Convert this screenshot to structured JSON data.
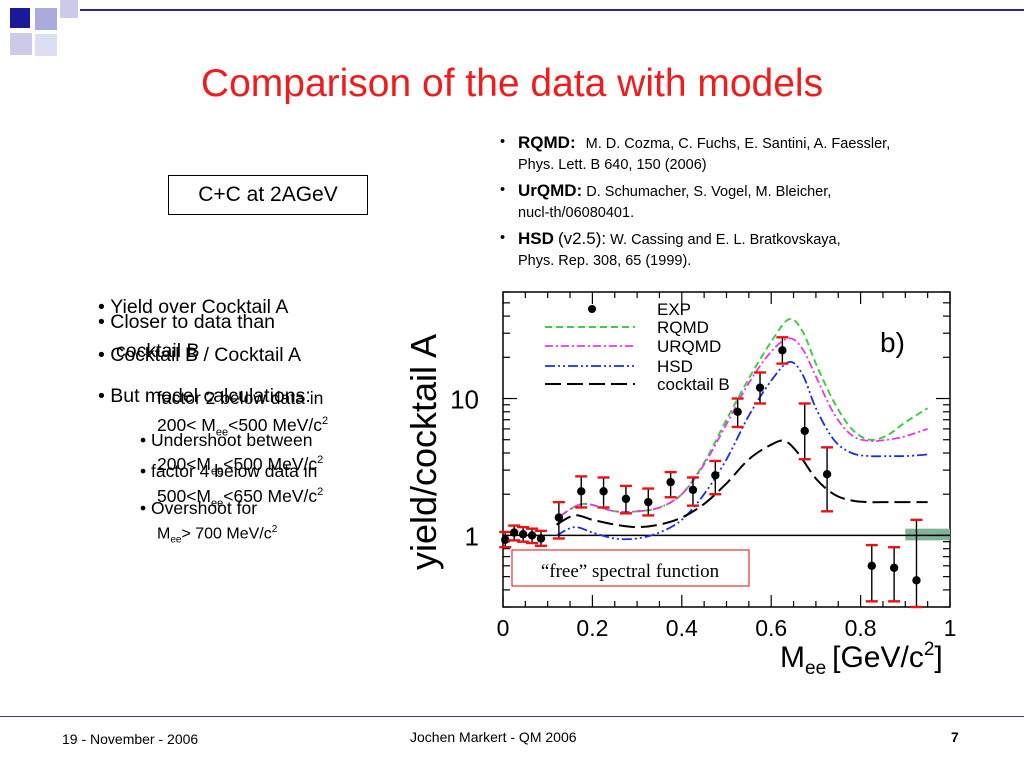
{
  "slide": {
    "title": "Comparison of the data with models",
    "box_label": "C+C at 2AGeV",
    "references": [
      {
        "name": "RQMD:",
        "version": "",
        "line1": "M. D. Cozma, C. Fuchs, E. Santini, A. Faessler,",
        "line2": "Phys. Lett. B 640, 150 (2006)"
      },
      {
        "name": "UrQMD:",
        "version": "",
        "line1": "D. Schumacher, S. Vogel, M. Bleicher,",
        "line2": "nucl-th/06080401."
      },
      {
        "name": "HSD",
        "version": "(v2.5):",
        "line1": "W. Cassing and E. L. Bratkovskaya,",
        "line2": "Phys. Rep. 308, 65 (1999)."
      }
    ],
    "bullets_a": {
      "b1": "Yield over Cocktail A",
      "b1_wrap": "cocktail B",
      "b2_l1": "Closer to data than",
      "b2_l2": "Cocktail B / Cocktail A",
      "b3": "But model calculations:",
      "b3_wrap": "factor 2 below data in",
      "s1": "200< M",
      "s1_sub": "ee",
      "s1_end": "<500 MeV/c",
      "s2_l1": "Undershoot between",
      "s2_l2": "200<M",
      "s2_l2_sub": "ee",
      "s2_l2_end": "<500 MeV/c",
      "s3_l1": "factor 4 below data in",
      "s3_l2": "500<M",
      "s3_l2_sub": "ee",
      "s3_l2_end": "<650 MeV/c",
      "s4_l1": "Overshoot for",
      "s4_l2": "M",
      "s4_l2_sub": "ee",
      "s4_l2_end": "> 700 MeV/c",
      "sup2": "2"
    },
    "footer": {
      "date": "19 - November - 2006",
      "center": "Jochen Markert - QM 2006",
      "page": "7"
    }
  },
  "chart_data": {
    "type": "scatter",
    "xlabel": "M",
    "xlabel_sub": "ee",
    "xlabel_unit": "[GeV/c",
    "xlabel_sup": "2",
    "xlabel_end": "]",
    "ylabel": "yield/cocktail A",
    "panel_label": "b)",
    "annotation": "“free” spectral function",
    "x_ticks": [
      "0",
      "0.2",
      "0.4",
      "0.6",
      "0.8",
      "1"
    ],
    "y_ticks": [
      "1",
      "10"
    ],
    "xlim": [
      0,
      1
    ],
    "ylim": [
      0.3,
      60
    ],
    "y_scale": "log",
    "legend": [
      "EXP",
      "RQMD",
      "URQMD",
      "HSD",
      "cocktail B"
    ],
    "colors": {
      "EXP": "#000000",
      "RQMD": "#44cc44",
      "URQMD": "#ee33ee",
      "HSD": "#1a2ee0",
      "cocktail B": "#000000",
      "errors": "#ee1111",
      "band": "#7fb39a"
    },
    "exp": [
      {
        "x": 0.005,
        "y": 0.93,
        "ylo": 0.82,
        "yhi": 1.06
      },
      {
        "x": 0.025,
        "y": 1.05,
        "ylo": 0.92,
        "yhi": 1.18
      },
      {
        "x": 0.045,
        "y": 1.02,
        "ylo": 0.9,
        "yhi": 1.15
      },
      {
        "x": 0.065,
        "y": 1.0,
        "ylo": 0.88,
        "yhi": 1.12
      },
      {
        "x": 0.085,
        "y": 0.95,
        "ylo": 0.84,
        "yhi": 1.08
      },
      {
        "x": 0.125,
        "y": 1.35,
        "ylo": 0.95,
        "yhi": 1.75
      },
      {
        "x": 0.175,
        "y": 2.1,
        "ylo": 1.6,
        "yhi": 2.7
      },
      {
        "x": 0.225,
        "y": 2.1,
        "ylo": 1.6,
        "yhi": 2.65
      },
      {
        "x": 0.275,
        "y": 1.85,
        "ylo": 1.45,
        "yhi": 2.3
      },
      {
        "x": 0.325,
        "y": 1.75,
        "ylo": 1.4,
        "yhi": 2.2
      },
      {
        "x": 0.375,
        "y": 2.45,
        "ylo": 1.9,
        "yhi": 2.9
      },
      {
        "x": 0.425,
        "y": 2.15,
        "ylo": 1.65,
        "yhi": 2.65
      },
      {
        "x": 0.475,
        "y": 2.75,
        "ylo": 2.0,
        "yhi": 3.5
      },
      {
        "x": 0.525,
        "y": 8.0,
        "ylo": 6.2,
        "yhi": 10.0
      },
      {
        "x": 0.575,
        "y": 12.0,
        "ylo": 9.2,
        "yhi": 15.5
      },
      {
        "x": 0.625,
        "y": 22.5,
        "ylo": 18.0,
        "yhi": 28.0
      },
      {
        "x": 0.675,
        "y": 5.8,
        "ylo": 3.6,
        "yhi": 9.2
      },
      {
        "x": 0.725,
        "y": 2.8,
        "ylo": 1.5,
        "yhi": 4.4
      },
      {
        "x": 0.825,
        "y": 0.6,
        "ylo": 0.33,
        "yhi": 0.85
      },
      {
        "x": 0.875,
        "y": 0.58,
        "ylo": 0.33,
        "yhi": 0.82
      },
      {
        "x": 0.925,
        "y": 0.47,
        "ylo": 0.3,
        "yhi": 1.3
      }
    ],
    "series": [
      {
        "name": "RQMD",
        "style": "dashed",
        "points": [
          [
            0.13,
            1.4
          ],
          [
            0.18,
            1.7
          ],
          [
            0.25,
            1.5
          ],
          [
            0.3,
            1.5
          ],
          [
            0.35,
            1.6
          ],
          [
            0.4,
            2.0
          ],
          [
            0.45,
            3.4
          ],
          [
            0.5,
            7.0
          ],
          [
            0.55,
            14.0
          ],
          [
            0.6,
            26.0
          ],
          [
            0.64,
            38.0
          ],
          [
            0.67,
            31.0
          ],
          [
            0.7,
            18.0
          ],
          [
            0.74,
            9.5
          ],
          [
            0.78,
            6.0
          ],
          [
            0.82,
            5.0
          ],
          [
            0.86,
            5.4
          ],
          [
            0.9,
            6.7
          ],
          [
            0.95,
            8.5
          ]
        ]
      },
      {
        "name": "URQMD",
        "style": "dashdot",
        "points": [
          [
            0.13,
            1.4
          ],
          [
            0.18,
            1.7
          ],
          [
            0.25,
            1.5
          ],
          [
            0.3,
            1.5
          ],
          [
            0.35,
            1.6
          ],
          [
            0.4,
            2.0
          ],
          [
            0.45,
            3.3
          ],
          [
            0.5,
            6.5
          ],
          [
            0.55,
            13.0
          ],
          [
            0.6,
            22.0
          ],
          [
            0.64,
            27.5
          ],
          [
            0.67,
            23.0
          ],
          [
            0.7,
            14.5
          ],
          [
            0.74,
            7.8
          ],
          [
            0.78,
            5.4
          ],
          [
            0.82,
            4.9
          ],
          [
            0.86,
            5.0
          ],
          [
            0.9,
            5.3
          ],
          [
            0.95,
            6.0
          ]
        ]
      },
      {
        "name": "HSD",
        "style": "dashdotdot",
        "points": [
          [
            0.12,
            1.0
          ],
          [
            0.16,
            1.15
          ],
          [
            0.2,
            1.05
          ],
          [
            0.25,
            0.95
          ],
          [
            0.3,
            0.95
          ],
          [
            0.35,
            1.05
          ],
          [
            0.4,
            1.3
          ],
          [
            0.45,
            2.0
          ],
          [
            0.5,
            3.6
          ],
          [
            0.55,
            7.5
          ],
          [
            0.6,
            13.5
          ],
          [
            0.64,
            18.5
          ],
          [
            0.67,
            15.0
          ],
          [
            0.7,
            8.5
          ],
          [
            0.74,
            5.0
          ],
          [
            0.78,
            4.0
          ],
          [
            0.82,
            3.8
          ],
          [
            0.86,
            3.8
          ],
          [
            0.9,
            3.8
          ],
          [
            0.95,
            3.9
          ]
        ]
      },
      {
        "name": "cocktail B",
        "style": "longdash",
        "points": [
          [
            0.12,
            1.2
          ],
          [
            0.16,
            1.4
          ],
          [
            0.2,
            1.3
          ],
          [
            0.25,
            1.2
          ],
          [
            0.3,
            1.15
          ],
          [
            0.35,
            1.2
          ],
          [
            0.4,
            1.35
          ],
          [
            0.45,
            1.7
          ],
          [
            0.5,
            2.4
          ],
          [
            0.55,
            3.6
          ],
          [
            0.6,
            4.6
          ],
          [
            0.63,
            4.9
          ],
          [
            0.66,
            4.0
          ],
          [
            0.7,
            2.6
          ],
          [
            0.74,
            2.0
          ],
          [
            0.78,
            1.8
          ],
          [
            0.82,
            1.75
          ],
          [
            0.86,
            1.75
          ],
          [
            0.9,
            1.75
          ],
          [
            0.95,
            1.75
          ]
        ]
      }
    ],
    "band": {
      "x0": 0.9,
      "x1": 1.0,
      "y0": 0.92,
      "y1": 1.12
    }
  }
}
